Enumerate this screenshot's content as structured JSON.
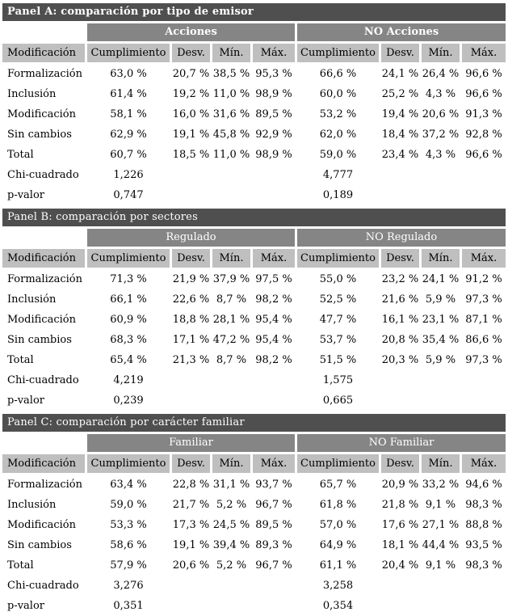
{
  "colors": {
    "panel_title_bar": "#4f4f4f",
    "group_header_bar": "#858585",
    "column_header_bar": "#bfbfbf",
    "body_background": "#ffffff"
  },
  "columns": [
    "Modificación",
    "Cumplimiento",
    "Desv.",
    "Mín.",
    "Máx.",
    "Cumplimiento",
    "Desv.",
    "Mín.",
    "Máx."
  ],
  "panels": [
    {
      "title": "Panel A: comparación por tipo de emisor",
      "group_left": "Acciones",
      "group_right": "NO Acciones",
      "rows": [
        {
          "cells": [
            "Formalización",
            "63,0 %",
            "20,7 %",
            "38,5 %",
            "95,3 %",
            "66,6 %",
            "24,1 %",
            "26,4 %",
            "96,6 %"
          ]
        },
        {
          "cells": [
            "Inclusión",
            "61,4 %",
            "19,2 %",
            "11,0 %",
            "98,9 %",
            "60,0 %",
            "25,2 %",
            "4,3 %",
            "96,6 %"
          ]
        },
        {
          "cells": [
            "Modificación",
            "58,1 %",
            "16,0 %",
            "31,6 %",
            "89,5 %",
            "53,2 %",
            "19,4 %",
            "20,6 %",
            "91,3 %"
          ]
        },
        {
          "cells": [
            "Sin cambios",
            "62,9 %",
            "19,1 %",
            "45,8 %",
            "92,9 %",
            "62,0 %",
            "18,4 %",
            "37,2 %",
            "92,8 %"
          ]
        },
        {
          "cells": [
            "Total",
            "60,7 %",
            "18,5 %",
            "11,0 %",
            "98,9 %",
            "59,0 %",
            "23,4 %",
            "4,3 %",
            "96,6 %"
          ]
        },
        {
          "cells": [
            "Chi-cuadrado",
            "1,226",
            "",
            "",
            "",
            "4,777",
            "",
            "",
            ""
          ]
        },
        {
          "cells": [
            "p-valor",
            "0,747",
            "",
            "",
            "",
            "0,189",
            "",
            "",
            ""
          ]
        }
      ]
    },
    {
      "title": "Panel B: comparación por sectores",
      "group_left": "Regulado",
      "group_right": "NO Regulado",
      "rows": [
        {
          "cells": [
            "Formalización",
            "71,3 %",
            "21,9 %",
            "37,9 %",
            "97,5 %",
            "55,0 %",
            "23,2 %",
            "24,1 %",
            "91,2 %"
          ]
        },
        {
          "cells": [
            "Inclusión",
            "66,1 %",
            "22,6 %",
            "8,7 %",
            "98,2 %",
            "52,5 %",
            "21,6 %",
            "5,9 %",
            "97,3 %"
          ]
        },
        {
          "cells": [
            "Modificación",
            "60,9 %",
            "18,8 %",
            "28,1 %",
            "95,4 %",
            "47,7 %",
            "16,1 %",
            "23,1 %",
            "87,1 %"
          ]
        },
        {
          "cells": [
            "Sin cambios",
            "68,3 %",
            "17,1 %",
            "47,2 %",
            "95,4 %",
            "53,7 %",
            "20,8 %",
            "35,4 %",
            "86,6 %"
          ]
        },
        {
          "cells": [
            "Total",
            "65,4 %",
            "21,3 %",
            "8,7 %",
            "98,2 %",
            "51,5 %",
            "20,3 %",
            "5,9 %",
            "97,3 %"
          ]
        },
        {
          "cells": [
            "Chi-cuadrado",
            "4,219",
            "",
            "",
            "",
            "1,575",
            "",
            "",
            ""
          ]
        },
        {
          "cells": [
            "p-valor",
            "0,239",
            "",
            "",
            "",
            "0,665",
            "",
            "",
            ""
          ]
        }
      ]
    },
    {
      "title": "Panel C: comparación por carácter familiar",
      "group_left": "Familiar",
      "group_right": "NO Familiar",
      "rows": [
        {
          "cells": [
            "Formalización",
            "63,4 %",
            "22,8 %",
            "31,1 %",
            "93,7 %",
            "65,7 %",
            "20,9 %",
            "33,2 %",
            "94,6 %"
          ]
        },
        {
          "cells": [
            "Inclusión",
            "59,0 %",
            "21,7 %",
            "5,2 %",
            "96,7 %",
            "61,8 %",
            "21,8 %",
            "9,1 %",
            "98,3 %"
          ]
        },
        {
          "cells": [
            "Modificación",
            "53,3 %",
            "17,3 %",
            "24,5 %",
            "89,5 %",
            "57,0 %",
            "17,6 %",
            "27,1 %",
            "88,8 %"
          ]
        },
        {
          "cells": [
            "Sin cambios",
            "58,6 %",
            "19,1 %",
            "39,4 %",
            "89,3 %",
            "64,9 %",
            "18,1 %",
            "44,4 %",
            "93,5 %"
          ]
        },
        {
          "cells": [
            "Total",
            "57,9 %",
            "20,6 %",
            "5,2 %",
            "96,7 %",
            "61,1 %",
            "20,4 %",
            "9,1 %",
            "98,3 %"
          ]
        },
        {
          "cells": [
            "Chi-cuadrado",
            "3,276",
            "",
            "",
            "",
            "3,258",
            "",
            "",
            ""
          ]
        },
        {
          "cells": [
            "p-valor",
            "0,351",
            "",
            "",
            "",
            "0,354",
            "",
            "",
            ""
          ]
        }
      ]
    }
  ]
}
